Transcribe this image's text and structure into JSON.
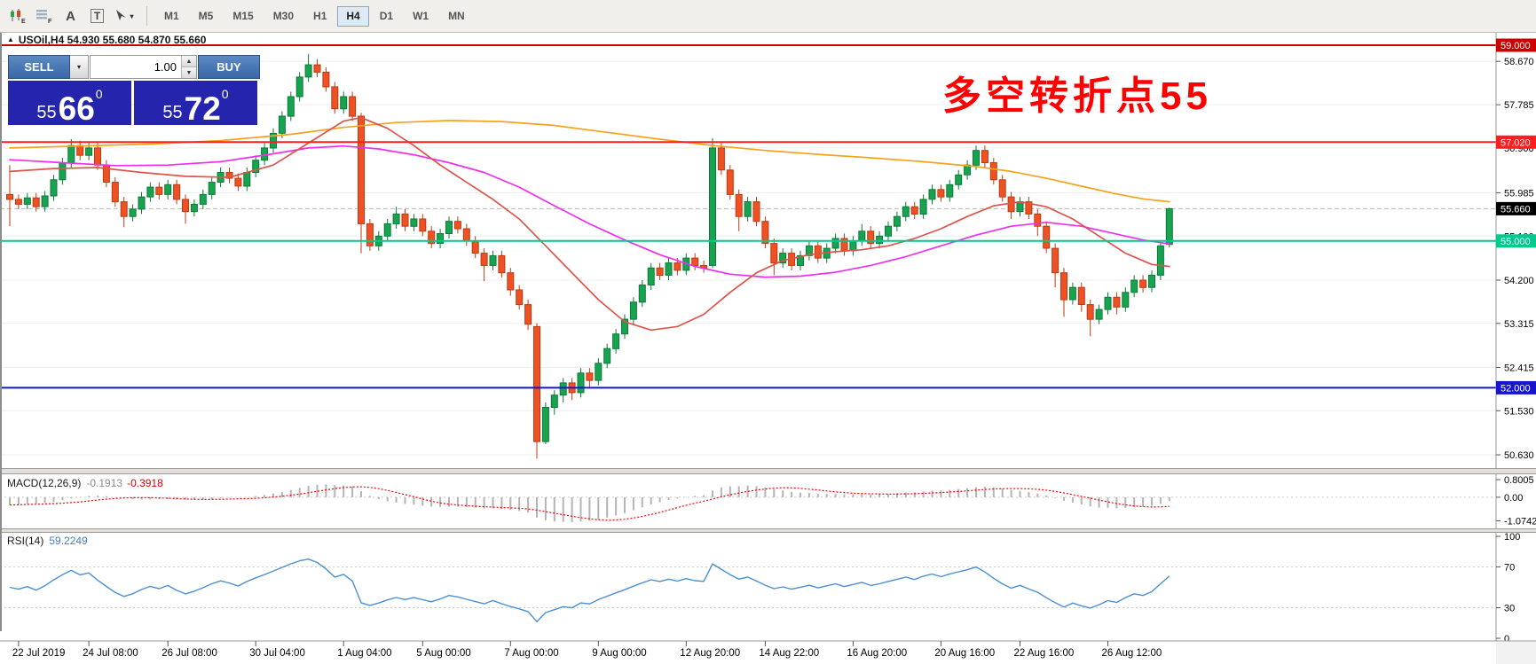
{
  "toolbar": {
    "text_label_tool": "A",
    "text_box_tool": "T",
    "timeframes": [
      {
        "label": "M1",
        "active": false
      },
      {
        "label": "M5",
        "active": false
      },
      {
        "label": "M15",
        "active": false
      },
      {
        "label": "M30",
        "active": false
      },
      {
        "label": "H1",
        "active": false
      },
      {
        "label": "H4",
        "active": true
      },
      {
        "label": "D1",
        "active": false
      },
      {
        "label": "W1",
        "active": false
      },
      {
        "label": "MN",
        "active": false
      }
    ]
  },
  "chart": {
    "title": "USOil,H4  54.930 55.680 54.870 55.660",
    "annotation_text": "多空转折点55",
    "annotation_color": "#ff0000"
  },
  "trade_panel": {
    "sell_label": "SELL",
    "buy_label": "BUY",
    "volume": "1.00",
    "bid_small": "55",
    "bid_big": "66",
    "bid_sup": "0",
    "ask_small": "55",
    "ask_big": "72",
    "ask_sup": "0"
  },
  "indicators": {
    "macd_label": "MACD(12,26,9)",
    "macd_main_value": "-0.1913",
    "macd_signal_value": "-0.3918",
    "rsi_label": "RSI(14)",
    "rsi_value": "59.2249"
  },
  "chart_data": {
    "type": "candlestick",
    "symbol": "USOil",
    "timeframe": "H4",
    "last_bar": {
      "open": 54.93,
      "high": 55.68,
      "low": 54.87,
      "close": 55.66
    },
    "colors": {
      "up": "#17a34f",
      "up_border": "#0c7a38",
      "down": "#ee5123",
      "down_border": "#bf3a12",
      "ma_fast": "#dd5449",
      "ma_mid": "#ef2fef",
      "ma_slow": "#f6a21c",
      "macd_hist": "#b4b4b4",
      "macd_signal": "#ff0000",
      "rsi": "#4a8fd4"
    },
    "y_ticks": [
      58.67,
      57.785,
      56.9,
      55.985,
      55.1,
      54.2,
      53.315,
      52.415,
      51.53,
      50.63
    ],
    "price_lines": [
      {
        "label": "59.000",
        "price": 59.0,
        "color": "#cc0000",
        "width": 2
      },
      {
        "label": "57.020",
        "price": 57.02,
        "color": "#ff1f1f",
        "width": 2
      },
      {
        "label": "55.000",
        "price": 55.0,
        "color": "#00c98d",
        "width": 2
      },
      {
        "label": "52.000",
        "price": 52.0,
        "color": "#1515cc",
        "width": 2
      }
    ],
    "current_price": {
      "label": "55.660",
      "price": 55.66
    },
    "x_labels": [
      {
        "text": "22 Jul 2019",
        "i": 1
      },
      {
        "text": "24 Jul 08:00",
        "i": 9
      },
      {
        "text": "26 Jul 08:00",
        "i": 18
      },
      {
        "text": "30 Jul 04:00",
        "i": 28
      },
      {
        "text": "1 Aug 04:00",
        "i": 38
      },
      {
        "text": "5 Aug 00:00",
        "i": 47
      },
      {
        "text": "7 Aug 00:00",
        "i": 57
      },
      {
        "text": "9 Aug 00:00",
        "i": 67
      },
      {
        "text": "12 Aug 20:00",
        "i": 77
      },
      {
        "text": "14 Aug 22:00",
        "i": 86
      },
      {
        "text": "16 Aug 20:00",
        "i": 96
      },
      {
        "text": "20 Aug 16:00",
        "i": 106
      },
      {
        "text": "22 Aug 16:00",
        "i": 115
      },
      {
        "text": "26 Aug 12:00",
        "i": 125
      }
    ],
    "macd": {
      "label": "MACD(12,26,9)",
      "params": [
        12,
        26,
        9
      ],
      "main_value": -0.1913,
      "signal_value": -0.3918,
      "y_labels": [
        "0.8005",
        "0.00",
        "-1.0742"
      ],
      "y_values": [
        0.8005,
        0,
        -1.0742
      ]
    },
    "rsi": {
      "label": "RSI(14)",
      "period": 14,
      "value": 59.2249,
      "levels": [
        70,
        30
      ],
      "y_labels": [
        "100",
        "70",
        "30",
        "0"
      ],
      "y_values": [
        100,
        70,
        30,
        0
      ]
    },
    "ma_lines": [
      {
        "name": "ma-slow-line",
        "color": "#f6a21c",
        "points": [
          [
            0,
            56.9
          ],
          [
            8,
            56.94
          ],
          [
            16,
            56.98
          ],
          [
            24,
            57.05
          ],
          [
            32,
            57.18
          ],
          [
            38,
            57.32
          ],
          [
            44,
            57.42
          ],
          [
            50,
            57.46
          ],
          [
            56,
            57.44
          ],
          [
            62,
            57.36
          ],
          [
            68,
            57.22
          ],
          [
            74,
            57.08
          ],
          [
            80,
            56.95
          ],
          [
            86,
            56.85
          ],
          [
            92,
            56.77
          ],
          [
            98,
            56.7
          ],
          [
            104,
            56.62
          ],
          [
            110,
            56.52
          ],
          [
            114,
            56.42
          ],
          [
            118,
            56.28
          ],
          [
            122,
            56.12
          ],
          [
            126,
            55.96
          ],
          [
            129,
            55.86
          ],
          [
            132,
            55.8
          ]
        ]
      },
      {
        "name": "ma-medium-line",
        "color": "#ef2fef",
        "points": [
          [
            0,
            56.66
          ],
          [
            6,
            56.6
          ],
          [
            12,
            56.54
          ],
          [
            18,
            56.55
          ],
          [
            24,
            56.62
          ],
          [
            30,
            56.78
          ],
          [
            34,
            56.9
          ],
          [
            38,
            56.94
          ],
          [
            42,
            56.88
          ],
          [
            46,
            56.76
          ],
          [
            50,
            56.6
          ],
          [
            54,
            56.4
          ],
          [
            58,
            56.1
          ],
          [
            62,
            55.72
          ],
          [
            66,
            55.35
          ],
          [
            70,
            55.02
          ],
          [
            74,
            54.72
          ],
          [
            78,
            54.48
          ],
          [
            82,
            54.32
          ],
          [
            86,
            54.26
          ],
          [
            90,
            54.28
          ],
          [
            94,
            54.36
          ],
          [
            98,
            54.5
          ],
          [
            102,
            54.68
          ],
          [
            106,
            54.9
          ],
          [
            110,
            55.12
          ],
          [
            114,
            55.3
          ],
          [
            118,
            55.38
          ],
          [
            122,
            55.3
          ],
          [
            126,
            55.14
          ],
          [
            129,
            55.02
          ],
          [
            132,
            54.94
          ]
        ]
      },
      {
        "name": "ma-fast-line",
        "color": "#dd5449",
        "points": [
          [
            0,
            56.42
          ],
          [
            5,
            56.48
          ],
          [
            10,
            56.5
          ],
          [
            15,
            56.4
          ],
          [
            20,
            56.32
          ],
          [
            25,
            56.3
          ],
          [
            30,
            56.55
          ],
          [
            34,
            57.0
          ],
          [
            38,
            57.45
          ],
          [
            40,
            57.52
          ],
          [
            43,
            57.3
          ],
          [
            46,
            56.95
          ],
          [
            49,
            56.55
          ],
          [
            52,
            56.2
          ],
          [
            55,
            55.85
          ],
          [
            58,
            55.45
          ],
          [
            61,
            54.9
          ],
          [
            64,
            54.35
          ],
          [
            67,
            53.8
          ],
          [
            70,
            53.35
          ],
          [
            73,
            53.18
          ],
          [
            76,
            53.25
          ],
          [
            79,
            53.5
          ],
          [
            82,
            53.95
          ],
          [
            85,
            54.35
          ],
          [
            88,
            54.6
          ],
          [
            91,
            54.72
          ],
          [
            94,
            54.78
          ],
          [
            97,
            54.82
          ],
          [
            100,
            54.9
          ],
          [
            103,
            55.05
          ],
          [
            106,
            55.25
          ],
          [
            109,
            55.5
          ],
          [
            112,
            55.72
          ],
          [
            115,
            55.8
          ],
          [
            118,
            55.7
          ],
          [
            121,
            55.45
          ],
          [
            124,
            55.1
          ],
          [
            127,
            54.75
          ],
          [
            130,
            54.52
          ],
          [
            132,
            54.48
          ]
        ]
      }
    ],
    "ohlc": [
      [
        55.95,
        56.55,
        55.3,
        55.85
      ],
      [
        55.85,
        55.95,
        55.65,
        55.75
      ],
      [
        55.75,
        55.98,
        55.65,
        55.88
      ],
      [
        55.88,
        55.98,
        55.6,
        55.7
      ],
      [
        55.7,
        56.02,
        55.6,
        55.92
      ],
      [
        55.92,
        56.35,
        55.82,
        56.25
      ],
      [
        56.25,
        56.7,
        56.15,
        56.6
      ],
      [
        56.6,
        57.08,
        56.5,
        56.95
      ],
      [
        56.95,
        57.05,
        56.65,
        56.75
      ],
      [
        56.75,
        57.02,
        56.65,
        56.9
      ],
      [
        56.9,
        57.0,
        56.45,
        56.55
      ],
      [
        56.55,
        56.65,
        56.1,
        56.2
      ],
      [
        56.2,
        56.3,
        55.7,
        55.8
      ],
      [
        55.8,
        55.9,
        55.28,
        55.5
      ],
      [
        55.5,
        55.75,
        55.4,
        55.65
      ],
      [
        55.65,
        56.0,
        55.55,
        55.9
      ],
      [
        55.9,
        56.2,
        55.8,
        56.1
      ],
      [
        56.1,
        56.2,
        55.85,
        55.95
      ],
      [
        55.95,
        56.25,
        55.85,
        56.15
      ],
      [
        56.15,
        56.25,
        55.75,
        55.85
      ],
      [
        55.85,
        55.95,
        55.35,
        55.6
      ],
      [
        55.6,
        55.85,
        55.5,
        55.75
      ],
      [
        55.75,
        56.05,
        55.65,
        55.95
      ],
      [
        55.95,
        56.3,
        55.85,
        56.2
      ],
      [
        56.2,
        56.5,
        56.1,
        56.4
      ],
      [
        56.4,
        56.5,
        56.18,
        56.28
      ],
      [
        56.28,
        56.38,
        56.02,
        56.12
      ],
      [
        56.12,
        56.5,
        56.02,
        56.4
      ],
      [
        56.4,
        56.75,
        56.3,
        56.65
      ],
      [
        56.65,
        57.0,
        56.55,
        56.9
      ],
      [
        56.9,
        57.3,
        56.8,
        57.2
      ],
      [
        57.2,
        57.65,
        57.1,
        57.55
      ],
      [
        57.55,
        58.05,
        57.45,
        57.95
      ],
      [
        57.95,
        58.45,
        57.85,
        58.35
      ],
      [
        58.35,
        58.82,
        58.25,
        58.6
      ],
      [
        58.6,
        58.72,
        58.35,
        58.45
      ],
      [
        58.45,
        58.55,
        58.05,
        58.15
      ],
      [
        58.15,
        58.25,
        57.6,
        57.7
      ],
      [
        57.7,
        58.05,
        57.6,
        57.95
      ],
      [
        57.95,
        58.05,
        57.45,
        57.55
      ],
      [
        57.55,
        57.62,
        54.75,
        55.35
      ],
      [
        55.35,
        55.45,
        54.8,
        54.9
      ],
      [
        54.9,
        55.2,
        54.8,
        55.1
      ],
      [
        55.1,
        55.45,
        55.0,
        55.35
      ],
      [
        55.35,
        55.7,
        55.25,
        55.55
      ],
      [
        55.55,
        55.65,
        55.2,
        55.3
      ],
      [
        55.3,
        55.55,
        55.2,
        55.45
      ],
      [
        55.45,
        55.55,
        55.1,
        55.2
      ],
      [
        55.2,
        55.3,
        54.85,
        54.95
      ],
      [
        54.95,
        55.25,
        54.85,
        55.15
      ],
      [
        55.15,
        55.5,
        55.05,
        55.4
      ],
      [
        55.4,
        55.5,
        55.15,
        55.25
      ],
      [
        55.25,
        55.35,
        54.9,
        55.0
      ],
      [
        55.0,
        55.1,
        54.65,
        54.75
      ],
      [
        54.75,
        54.85,
        54.18,
        54.5
      ],
      [
        54.5,
        54.8,
        54.4,
        54.7
      ],
      [
        54.7,
        54.8,
        54.25,
        54.35
      ],
      [
        54.35,
        54.45,
        53.88,
        54.0
      ],
      [
        54.0,
        54.1,
        53.6,
        53.7
      ],
      [
        53.7,
        53.8,
        53.18,
        53.3
      ],
      [
        53.25,
        53.32,
        50.55,
        50.9
      ],
      [
        50.9,
        51.7,
        50.85,
        51.6
      ],
      [
        51.6,
        51.95,
        51.45,
        51.85
      ],
      [
        51.85,
        52.2,
        51.7,
        52.1
      ],
      [
        52.1,
        52.2,
        51.75,
        51.9
      ],
      [
        51.9,
        52.4,
        51.8,
        52.3
      ],
      [
        52.3,
        52.4,
        52.0,
        52.15
      ],
      [
        52.15,
        52.6,
        52.05,
        52.5
      ],
      [
        52.5,
        52.9,
        52.4,
        52.8
      ],
      [
        52.8,
        53.2,
        52.7,
        53.1
      ],
      [
        53.1,
        53.5,
        53.0,
        53.4
      ],
      [
        53.4,
        53.85,
        53.3,
        53.75
      ],
      [
        53.75,
        54.2,
        53.65,
        54.1
      ],
      [
        54.1,
        54.55,
        54.0,
        54.45
      ],
      [
        54.45,
        54.55,
        54.2,
        54.3
      ],
      [
        54.3,
        54.65,
        54.2,
        54.55
      ],
      [
        54.55,
        54.65,
        54.3,
        54.4
      ],
      [
        54.4,
        54.75,
        54.3,
        54.65
      ],
      [
        54.65,
        54.75,
        54.4,
        54.5
      ],
      [
        54.5,
        54.6,
        54.35,
        54.45
      ],
      [
        54.5,
        57.1,
        54.45,
        56.9
      ],
      [
        56.9,
        57.0,
        56.35,
        56.45
      ],
      [
        56.45,
        56.55,
        55.85,
        55.95
      ],
      [
        55.95,
        56.05,
        55.2,
        55.5
      ],
      [
        55.5,
        55.9,
        55.4,
        55.8
      ],
      [
        55.8,
        55.9,
        55.3,
        55.4
      ],
      [
        55.4,
        55.5,
        54.85,
        54.95
      ],
      [
        54.95,
        55.05,
        54.3,
        54.55
      ],
      [
        54.55,
        54.85,
        54.45,
        54.75
      ],
      [
        54.75,
        54.85,
        54.4,
        54.5
      ],
      [
        54.5,
        54.8,
        54.4,
        54.7
      ],
      [
        54.7,
        55.0,
        54.6,
        54.9
      ],
      [
        54.9,
        55.0,
        54.55,
        54.65
      ],
      [
        54.65,
        54.95,
        54.55,
        54.85
      ],
      [
        54.85,
        55.15,
        54.75,
        55.05
      ],
      [
        55.05,
        55.15,
        54.7,
        54.8
      ],
      [
        54.8,
        55.1,
        54.7,
        55.0
      ],
      [
        55.0,
        55.35,
        54.9,
        55.2
      ],
      [
        55.2,
        55.3,
        54.85,
        54.95
      ],
      [
        54.95,
        55.2,
        54.85,
        55.1
      ],
      [
        55.1,
        55.4,
        55.0,
        55.3
      ],
      [
        55.3,
        55.6,
        55.2,
        55.5
      ],
      [
        55.5,
        55.8,
        55.4,
        55.7
      ],
      [
        55.7,
        55.8,
        55.45,
        55.55
      ],
      [
        55.55,
        55.95,
        55.45,
        55.85
      ],
      [
        55.85,
        56.15,
        55.75,
        56.05
      ],
      [
        56.05,
        56.15,
        55.8,
        55.9
      ],
      [
        55.9,
        56.25,
        55.8,
        56.15
      ],
      [
        56.15,
        56.45,
        56.05,
        56.35
      ],
      [
        56.35,
        56.65,
        56.25,
        56.55
      ],
      [
        56.55,
        56.95,
        56.45,
        56.85
      ],
      [
        56.85,
        56.95,
        56.5,
        56.6
      ],
      [
        56.6,
        56.7,
        56.15,
        56.25
      ],
      [
        56.25,
        56.35,
        55.8,
        55.9
      ],
      [
        55.9,
        56.0,
        55.45,
        55.6
      ],
      [
        55.6,
        55.9,
        55.5,
        55.8
      ],
      [
        55.8,
        55.9,
        55.45,
        55.55
      ],
      [
        55.55,
        55.65,
        55.1,
        55.3
      ],
      [
        55.3,
        55.4,
        54.75,
        54.85
      ],
      [
        54.85,
        54.95,
        54.05,
        54.35
      ],
      [
        54.35,
        54.45,
        53.45,
        53.8
      ],
      [
        53.8,
        54.15,
        53.7,
        54.05
      ],
      [
        54.05,
        54.15,
        53.55,
        53.7
      ],
      [
        53.7,
        53.8,
        53.05,
        53.4
      ],
      [
        53.4,
        53.7,
        53.3,
        53.6
      ],
      [
        53.6,
        53.95,
        53.5,
        53.85
      ],
      [
        53.85,
        53.95,
        53.5,
        53.65
      ],
      [
        53.65,
        54.05,
        53.55,
        53.95
      ],
      [
        53.95,
        54.3,
        53.85,
        54.2
      ],
      [
        54.2,
        54.3,
        53.95,
        54.05
      ],
      [
        54.05,
        54.4,
        53.95,
        54.3
      ],
      [
        54.3,
        54.95,
        54.2,
        54.9
      ],
      [
        54.93,
        55.68,
        54.87,
        55.66
      ]
    ]
  }
}
